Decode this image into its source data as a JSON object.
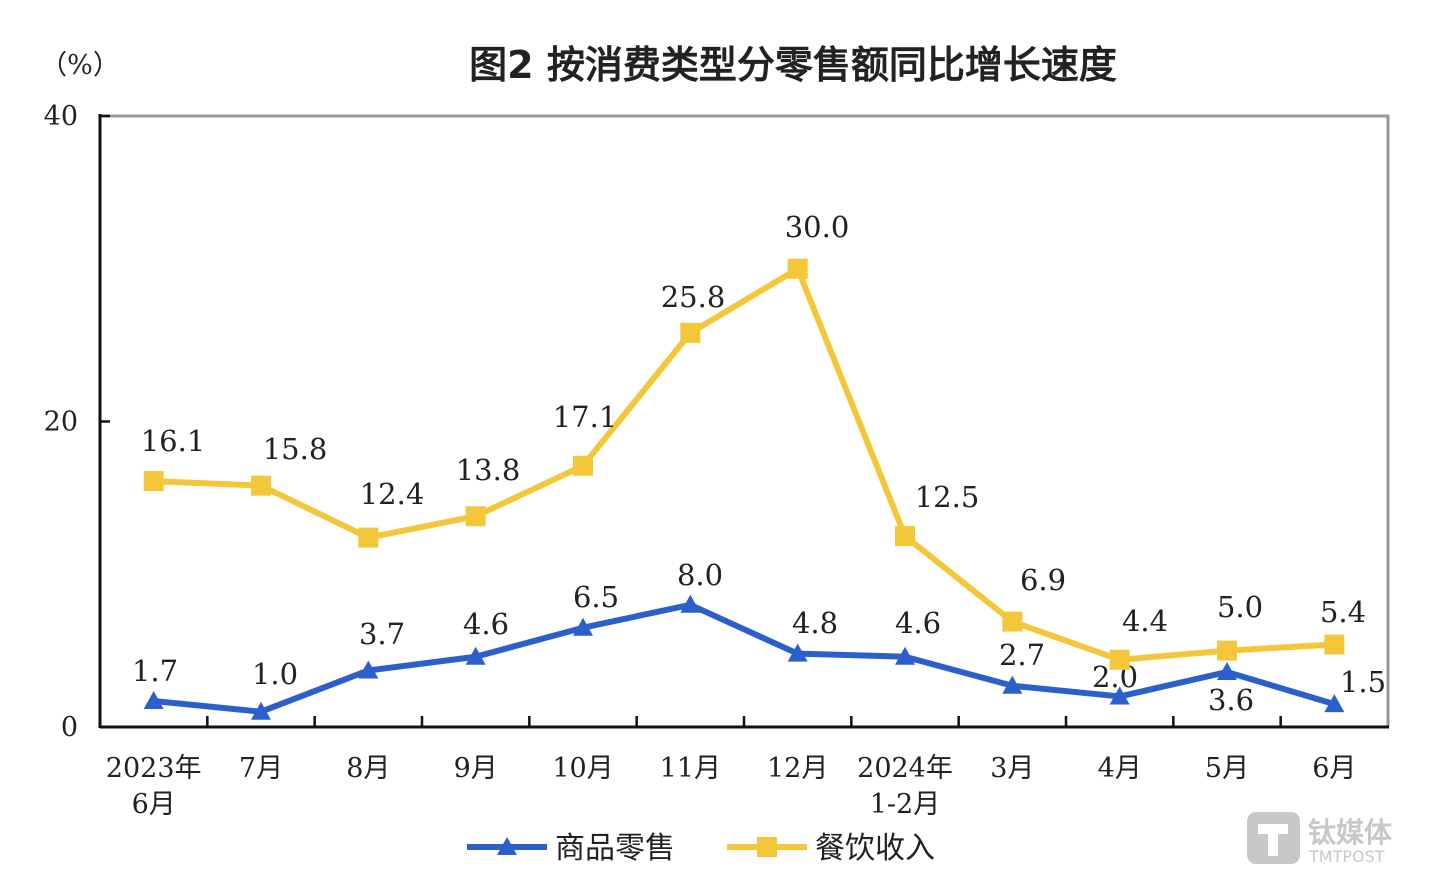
{
  "chart_data": {
    "type": "line",
    "title": "图2  按消费类型分零售额同比增长速度",
    "ylabel": "（%）",
    "ylim": [
      0,
      40
    ],
    "yticks": [
      0,
      20,
      40
    ],
    "categories": [
      "2023年\n6月",
      "7月",
      "8月",
      "9月",
      "10月",
      "11月",
      "12月",
      "2024年\n1-2月",
      "3月",
      "4月",
      "5月",
      "6月"
    ],
    "series": [
      {
        "name": "商品零售",
        "color": "#2b5fcc",
        "marker": "triangle",
        "values": [
          1.7,
          1.0,
          3.7,
          4.6,
          6.5,
          8.0,
          4.8,
          4.6,
          2.7,
          2.0,
          3.6,
          1.5
        ]
      },
      {
        "name": "餐饮收入",
        "color": "#f4c73a",
        "marker": "square",
        "values": [
          16.1,
          15.8,
          12.4,
          13.8,
          17.1,
          25.8,
          30.0,
          12.5,
          6.9,
          4.4,
          5.0,
          5.4
        ]
      }
    ],
    "legend": "bottom",
    "grid": false
  },
  "watermark": {
    "cn": "钛媒体",
    "en": "TMTPOST"
  }
}
